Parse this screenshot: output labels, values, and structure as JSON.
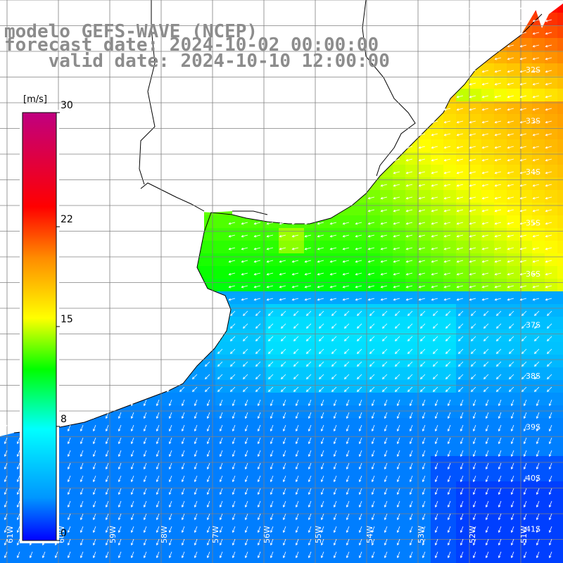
{
  "title": {
    "line1": "modelo GEFS-WAVE (NCEP)",
    "line2": "forecast date: 2024-10-02 00:00:00",
    "line3": "    valid date: 2024-10-10 12:00:00"
  },
  "colorbar": {
    "unit": "[m/s]",
    "ticks": [
      {
        "value": 30,
        "label": "30"
      },
      {
        "value": 22,
        "label": "22"
      },
      {
        "value": 15,
        "label": "15"
      },
      {
        "value": 8,
        "label": "8"
      },
      {
        "value": 0,
        "label": "0"
      }
    ],
    "colors": [
      "#0000ff",
      "#0096ff",
      "#00ffff",
      "#00ff00",
      "#ffff00",
      "#ff8c00",
      "#ff0000",
      "#c00080"
    ]
  },
  "map": {
    "land_color": "#ffffff",
    "vector_color": "#ffffff",
    "grid_color": "#808080",
    "lat_labels": [
      "32S",
      "33S",
      "34S",
      "35S",
      "36S",
      "37S",
      "38S",
      "39S",
      "40S",
      "41S"
    ],
    "lon_labels": [
      "61W",
      "60W",
      "59W",
      "58W",
      "57W",
      "56W",
      "55W",
      "54W",
      "53W",
      "52W",
      "51W"
    ]
  }
}
